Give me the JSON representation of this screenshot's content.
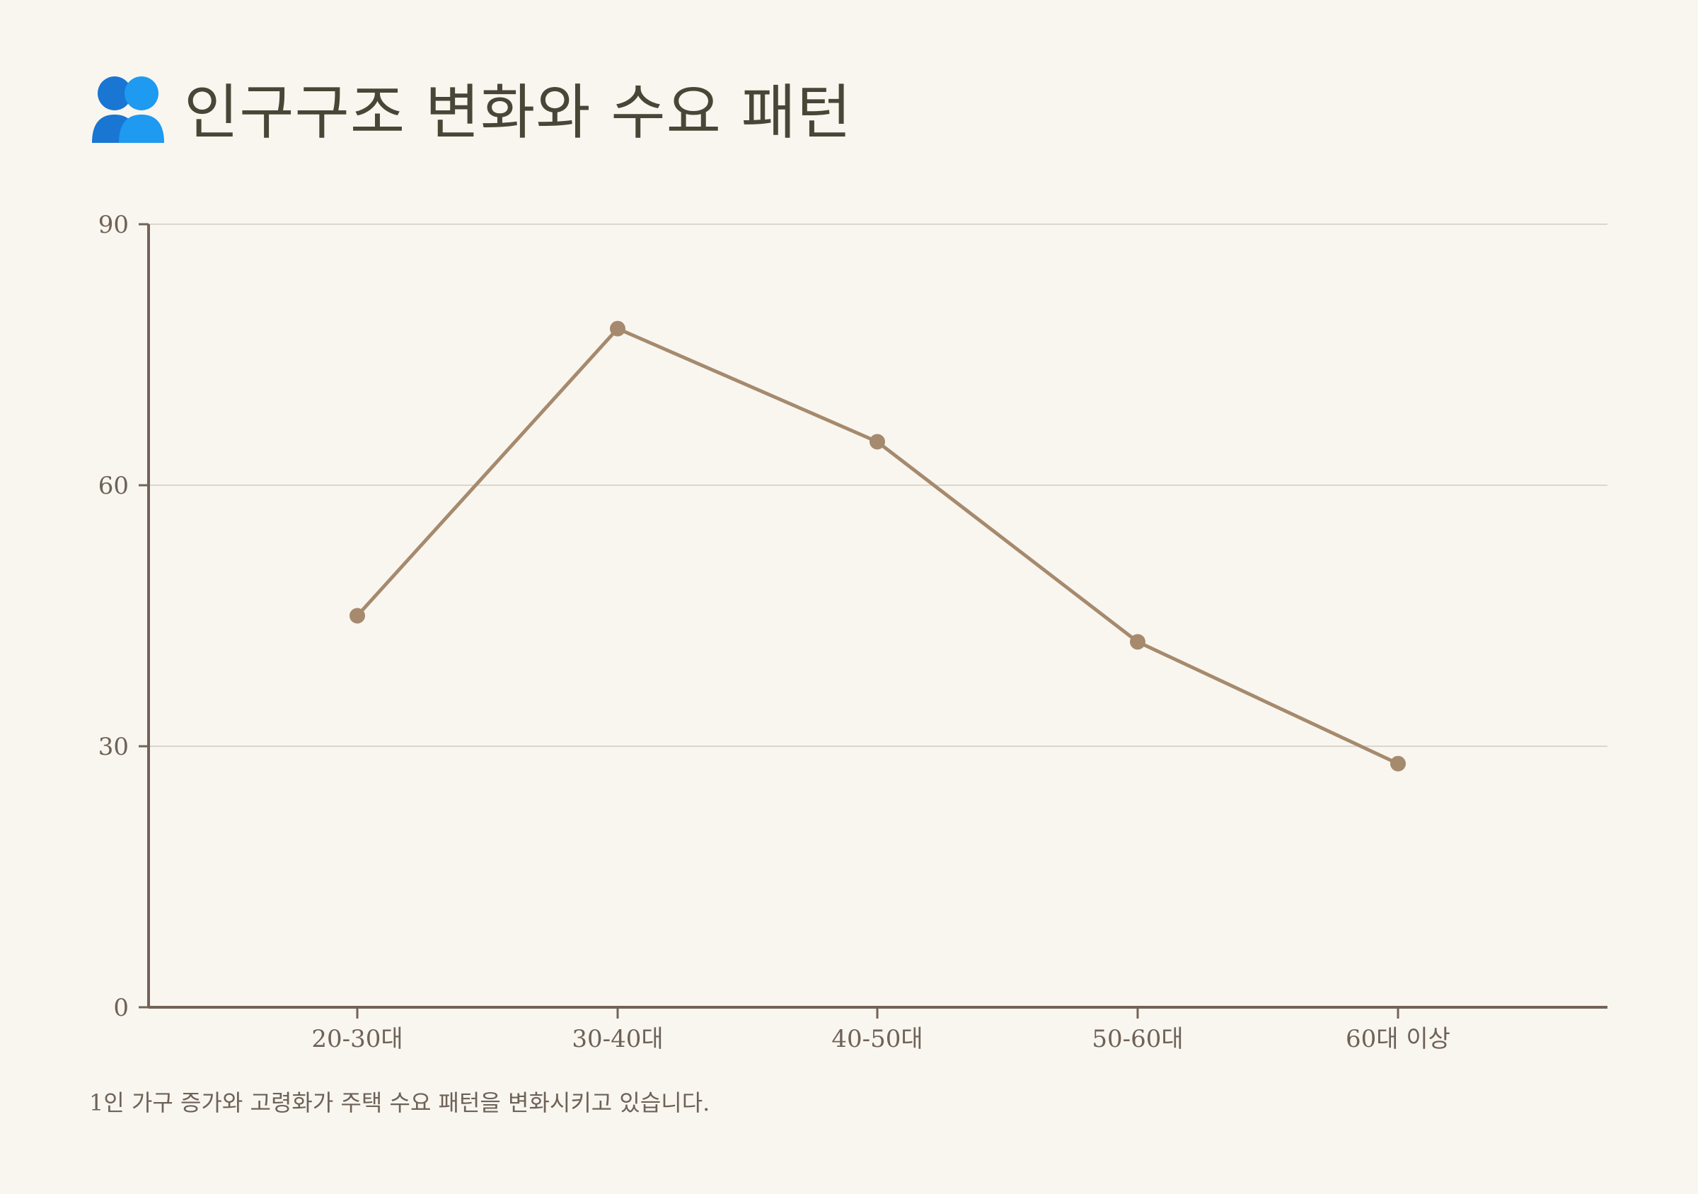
{
  "header": {
    "icon": "two-people-icon",
    "title": "인구구조 변화와 수요 패턴"
  },
  "colors": {
    "background": "#f9f6f0",
    "line": "#a68a6d",
    "axis": "#726357",
    "grid": "#dcd6cc",
    "icon_left": "#1976d2",
    "icon_right": "#1e9af0"
  },
  "chart_data": {
    "type": "line",
    "categories": [
      "20-30대",
      "30-40대",
      "40-50대",
      "50-60대",
      "60대 이상"
    ],
    "series": [
      {
        "values": [
          45,
          78,
          65,
          42,
          28
        ]
      }
    ],
    "title": "",
    "xlabel": "",
    "ylabel": "",
    "ylim": [
      0,
      90
    ],
    "yticks": [
      "0",
      "30",
      "60",
      "90"
    ],
    "grid": true,
    "legend": "none"
  },
  "caption": "1인 가구 증가와 고령화가 주택 수요 패턴을 변화시키고 있습니다."
}
